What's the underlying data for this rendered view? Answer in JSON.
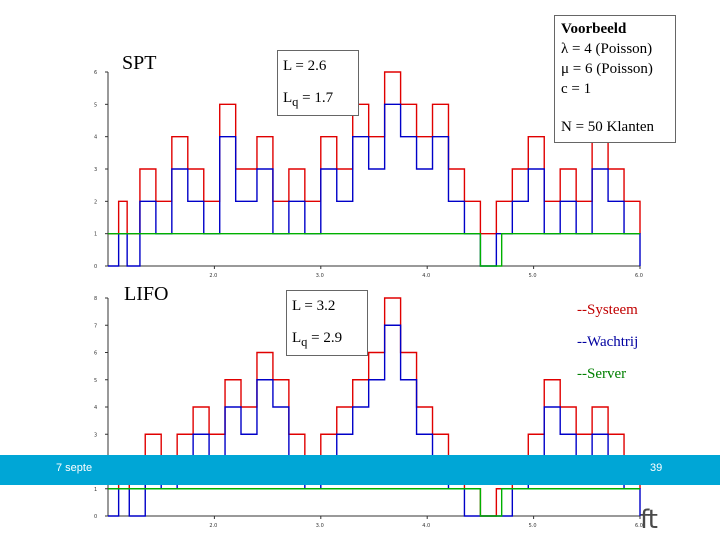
{
  "footer": {
    "date": "7 septe",
    "page": "39"
  },
  "logo": {
    "text": "ft"
  },
  "colors": {
    "system": "#e00000",
    "queue": "#0000c8",
    "server": "#00b000",
    "footer": "#00a6d6"
  },
  "top": {
    "label": "SPT",
    "L_label": "L = 2.6",
    "Lq_main": "L",
    "Lq_sub": "q",
    "Lq_value": " = 1.7",
    "info": {
      "title": "Voorbeeld",
      "lambda": "λ = 4 (Poisson)",
      "mu": "μ = 6 (Poisson)",
      "c": "c = 1",
      "n": "N = 50 Klanten"
    }
  },
  "bottom": {
    "label": "LIFO",
    "L_label": "L = 3.2",
    "Lq_main": "L",
    "Lq_sub": "q",
    "Lq_value": " = 2.9",
    "legend": [
      "--Systeem",
      "--Wachtrij",
      "--Server"
    ]
  },
  "chart_data": [
    {
      "type": "line",
      "title": "SPT",
      "x_ticks": [
        "2.0",
        "3.0",
        "4.0",
        "5.0",
        "6.0"
      ],
      "x_ticks_raw": [
        2,
        3,
        4,
        5,
        6
      ],
      "y_ticks": [
        "0",
        "1",
        "2",
        "3",
        "4",
        "5",
        "6"
      ],
      "xlim": [
        1.0,
        6.0
      ],
      "ylim": [
        0,
        6
      ],
      "series": [
        {
          "name": "Systeem",
          "x": [
            1.0,
            1.1,
            1.18,
            1.3,
            1.45,
            1.6,
            1.75,
            1.9,
            2.05,
            2.2,
            2.4,
            2.55,
            2.7,
            2.85,
            3.0,
            3.15,
            3.3,
            3.45,
            3.6,
            3.75,
            3.9,
            4.05,
            4.2,
            4.35,
            4.5,
            4.65,
            4.8,
            4.95,
            5.1,
            5.25,
            5.4,
            5.55,
            5.7,
            5.85,
            6.0
          ],
          "y": [
            1,
            2,
            1,
            3,
            2,
            4,
            3,
            2,
            5,
            3,
            4,
            2,
            3,
            2,
            4,
            3,
            5,
            4,
            6,
            5,
            4,
            5,
            3,
            2,
            1,
            2,
            3,
            4,
            2,
            3,
            2,
            4,
            3,
            2,
            1
          ]
        },
        {
          "name": "Wachtrij",
          "x": [
            1.0,
            1.1,
            1.18,
            1.3,
            1.45,
            1.6,
            1.75,
            1.9,
            2.05,
            2.2,
            2.4,
            2.55,
            2.7,
            2.85,
            3.0,
            3.15,
            3.3,
            3.45,
            3.6,
            3.75,
            3.9,
            4.05,
            4.2,
            4.35,
            4.5,
            4.65,
            4.8,
            4.95,
            5.1,
            5.25,
            5.4,
            5.55,
            5.7,
            5.85,
            6.0
          ],
          "y": [
            0,
            1,
            0,
            2,
            1,
            3,
            2,
            1,
            4,
            2,
            3,
            1,
            2,
            1,
            3,
            2,
            4,
            3,
            5,
            4,
            3,
            4,
            2,
            1,
            0,
            1,
            2,
            3,
            1,
            2,
            1,
            3,
            2,
            1,
            0
          ]
        },
        {
          "name": "Server",
          "x": [
            1.0,
            4.5,
            4.5,
            4.7,
            4.7,
            6.0
          ],
          "y": [
            1,
            1,
            0,
            0,
            1,
            1
          ]
        }
      ]
    },
    {
      "type": "line",
      "title": "LIFO",
      "x_ticks": [
        "2.0",
        "3.0",
        "4.0",
        "5.0",
        "6.0"
      ],
      "x_ticks_raw": [
        2,
        3,
        4,
        5,
        6
      ],
      "y_ticks": [
        "0",
        "1",
        "2",
        "3",
        "4",
        "5",
        "6",
        "7",
        "8"
      ],
      "xlim": [
        1.0,
        6.0
      ],
      "ylim": [
        0,
        8
      ],
      "series": [
        {
          "name": "Systeem",
          "x": [
            1.0,
            1.1,
            1.2,
            1.35,
            1.5,
            1.65,
            1.8,
            1.95,
            2.1,
            2.25,
            2.4,
            2.55,
            2.7,
            2.85,
            3.0,
            3.15,
            3.3,
            3.45,
            3.6,
            3.75,
            3.9,
            4.05,
            4.2,
            4.35,
            4.5,
            4.65,
            4.8,
            4.95,
            5.1,
            5.25,
            5.4,
            5.55,
            5.7,
            5.85,
            6.0
          ],
          "y": [
            1,
            2,
            1,
            3,
            2,
            3,
            4,
            3,
            5,
            4,
            6,
            5,
            3,
            2,
            3,
            4,
            5,
            6,
            8,
            6,
            4,
            3,
            2,
            1,
            0,
            1,
            2,
            3,
            5,
            4,
            3,
            4,
            3,
            2,
            1
          ]
        },
        {
          "name": "Wachtrij",
          "x": [
            1.0,
            1.1,
            1.2,
            1.35,
            1.5,
            1.65,
            1.8,
            1.95,
            2.1,
            2.25,
            2.4,
            2.55,
            2.7,
            2.85,
            3.0,
            3.15,
            3.3,
            3.45,
            3.6,
            3.75,
            3.9,
            4.05,
            4.2,
            4.35,
            4.5,
            4.65,
            4.8,
            4.95,
            5.1,
            5.25,
            5.4,
            5.55,
            5.7,
            5.85,
            6.0
          ],
          "y": [
            0,
            1,
            0,
            2,
            1,
            2,
            3,
            2,
            4,
            3,
            5,
            4,
            2,
            1,
            2,
            3,
            4,
            5,
            7,
            5,
            3,
            2,
            1,
            0,
            0,
            0,
            1,
            2,
            4,
            3,
            2,
            3,
            2,
            1,
            0
          ]
        },
        {
          "name": "Server",
          "x": [
            1.0,
            4.5,
            4.5,
            4.7,
            4.7,
            6.0
          ],
          "y": [
            1,
            1,
            0,
            0,
            1,
            1
          ]
        }
      ]
    }
  ]
}
